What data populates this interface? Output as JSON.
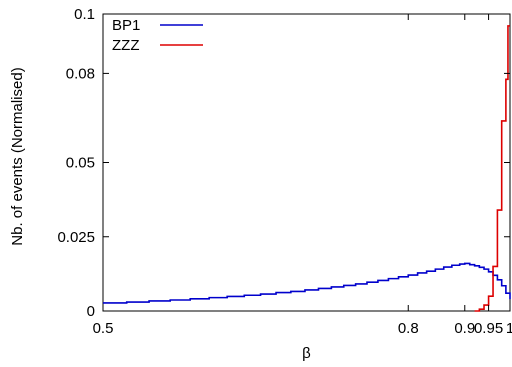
{
  "chart_data": {
    "type": "line",
    "step": true,
    "xlabel": "β",
    "ylabel": "Nb. of events (Normalised)",
    "x_scale": "reciprocal",
    "xlim": [
      0.5,
      1.0
    ],
    "ylim": [
      0,
      0.1
    ],
    "x_ticks": [
      {
        "value": 0.5,
        "label": "0.5"
      },
      {
        "value": 0.8,
        "label": "0.8"
      },
      {
        "value": 0.9,
        "label": "0.9"
      },
      {
        "value": 0.95,
        "label": "0.95"
      },
      {
        "value": 1.0,
        "label": "1"
      }
    ],
    "y_ticks": [
      {
        "value": 0,
        "label": "0"
      },
      {
        "value": 0.025,
        "label": "0.025"
      },
      {
        "value": 0.05,
        "label": "0.05"
      },
      {
        "value": 0.08,
        "label": "0.08"
      },
      {
        "value": 0.1,
        "label": "0.1"
      }
    ],
    "legend": "top-left",
    "grid": false,
    "series": [
      {
        "name": "BP1",
        "color": "#0000cc",
        "points": [
          [
            0.5,
            0.0027
          ],
          [
            0.515,
            0.003
          ],
          [
            0.53,
            0.0034
          ],
          [
            0.545,
            0.0037
          ],
          [
            0.56,
            0.0041
          ],
          [
            0.575,
            0.0045
          ],
          [
            0.59,
            0.0049
          ],
          [
            0.605,
            0.0053
          ],
          [
            0.62,
            0.0057
          ],
          [
            0.635,
            0.0062
          ],
          [
            0.65,
            0.0066
          ],
          [
            0.665,
            0.0071
          ],
          [
            0.68,
            0.0076
          ],
          [
            0.695,
            0.0081
          ],
          [
            0.71,
            0.0086
          ],
          [
            0.725,
            0.0091
          ],
          [
            0.74,
            0.0097
          ],
          [
            0.755,
            0.0103
          ],
          [
            0.77,
            0.0109
          ],
          [
            0.785,
            0.0115
          ],
          [
            0.8,
            0.0121
          ],
          [
            0.815,
            0.0128
          ],
          [
            0.83,
            0.0134
          ],
          [
            0.845,
            0.0141
          ],
          [
            0.86,
            0.0148
          ],
          [
            0.875,
            0.0154
          ],
          [
            0.89,
            0.0158
          ],
          [
            0.9,
            0.016
          ],
          [
            0.91,
            0.0156
          ],
          [
            0.92,
            0.0152
          ],
          [
            0.93,
            0.0147
          ],
          [
            0.94,
            0.0141
          ],
          [
            0.95,
            0.0132
          ],
          [
            0.96,
            0.012
          ],
          [
            0.97,
            0.0105
          ],
          [
            0.98,
            0.0085
          ],
          [
            0.99,
            0.006
          ],
          [
            1.0,
            0.004
          ]
        ]
      },
      {
        "name": "ZZZ",
        "color": "#dd0000",
        "points": [
          [
            0.92,
            0.0
          ],
          [
            0.93,
            0.0006
          ],
          [
            0.94,
            0.002
          ],
          [
            0.95,
            0.005
          ],
          [
            0.96,
            0.015
          ],
          [
            0.97,
            0.034
          ],
          [
            0.98,
            0.064
          ],
          [
            0.99,
            0.078
          ],
          [
            0.995,
            0.096
          ],
          [
            1.0,
            0.096
          ]
        ]
      }
    ]
  }
}
